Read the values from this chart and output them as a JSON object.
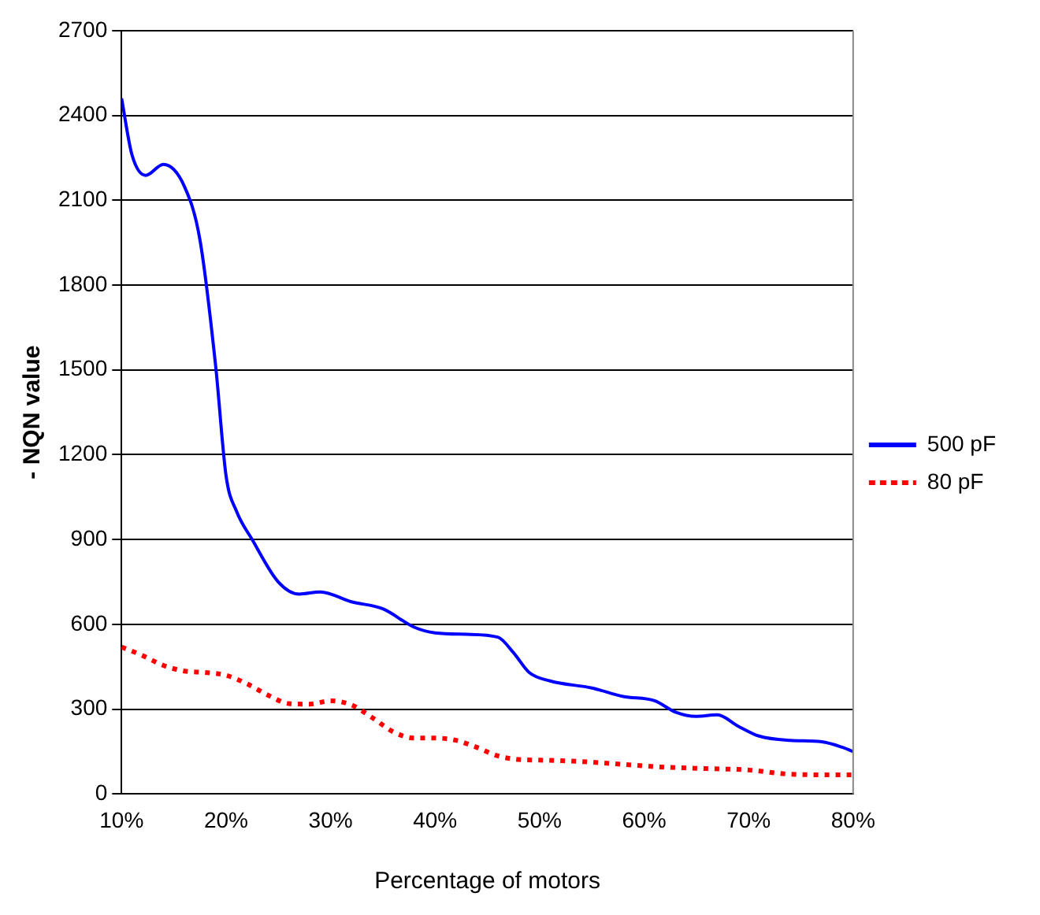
{
  "chart_data": {
    "type": "line",
    "xlabel": "Percentage of motors",
    "ylabel": "- NQN value",
    "xlim": [
      10,
      80
    ],
    "xticks": [
      {
        "value": 10,
        "label": "10%"
      },
      {
        "value": 20,
        "label": "20%"
      },
      {
        "value": 30,
        "label": "30%"
      },
      {
        "value": 40,
        "label": "40%"
      },
      {
        "value": 50,
        "label": "50%"
      },
      {
        "value": 60,
        "label": "60%"
      },
      {
        "value": 70,
        "label": "70%"
      },
      {
        "value": 80,
        "label": "80%"
      }
    ],
    "ylim": [
      0,
      2700
    ],
    "yticks": [
      0,
      300,
      600,
      900,
      1200,
      1500,
      1800,
      2100,
      2400,
      2700
    ],
    "grid": "y",
    "legend": "right",
    "marker": "none",
    "series": [
      {
        "name": "500 pF",
        "color": "#0000ff",
        "line_style": "solid",
        "x": [
          10,
          11,
          12.3,
          14,
          16,
          17.5,
          19,
          20,
          21,
          22.5,
          25,
          27,
          29,
          32,
          35,
          38,
          40,
          43,
          46,
          47.5,
          49,
          51,
          55,
          58,
          61,
          63,
          65,
          67,
          69,
          71,
          74,
          77,
          79,
          80
        ],
        "values": [
          2460,
          2260,
          2188,
          2227,
          2150,
          1960,
          1515,
          1125,
          1000,
          900,
          750,
          707,
          715,
          680,
          655,
          590,
          570,
          565,
          555,
          500,
          430,
          400,
          375,
          345,
          330,
          290,
          275,
          280,
          240,
          205,
          190,
          185,
          165,
          150
        ]
      },
      {
        "name": "80 pF",
        "color": "#ff0000",
        "line_style": "dotted",
        "x": [
          10,
          12,
          14,
          16,
          18,
          20,
          22,
          24,
          26,
          28,
          30,
          32,
          34,
          36,
          38,
          40,
          42,
          44,
          46,
          48,
          50,
          54,
          58,
          62,
          66,
          70,
          74,
          78,
          80
        ],
        "values": [
          520,
          490,
          455,
          435,
          430,
          420,
          390,
          350,
          320,
          318,
          330,
          315,
          270,
          220,
          198,
          198,
          190,
          165,
          135,
          122,
          120,
          115,
          105,
          95,
          90,
          85,
          70,
          68,
          68
        ]
      }
    ]
  }
}
